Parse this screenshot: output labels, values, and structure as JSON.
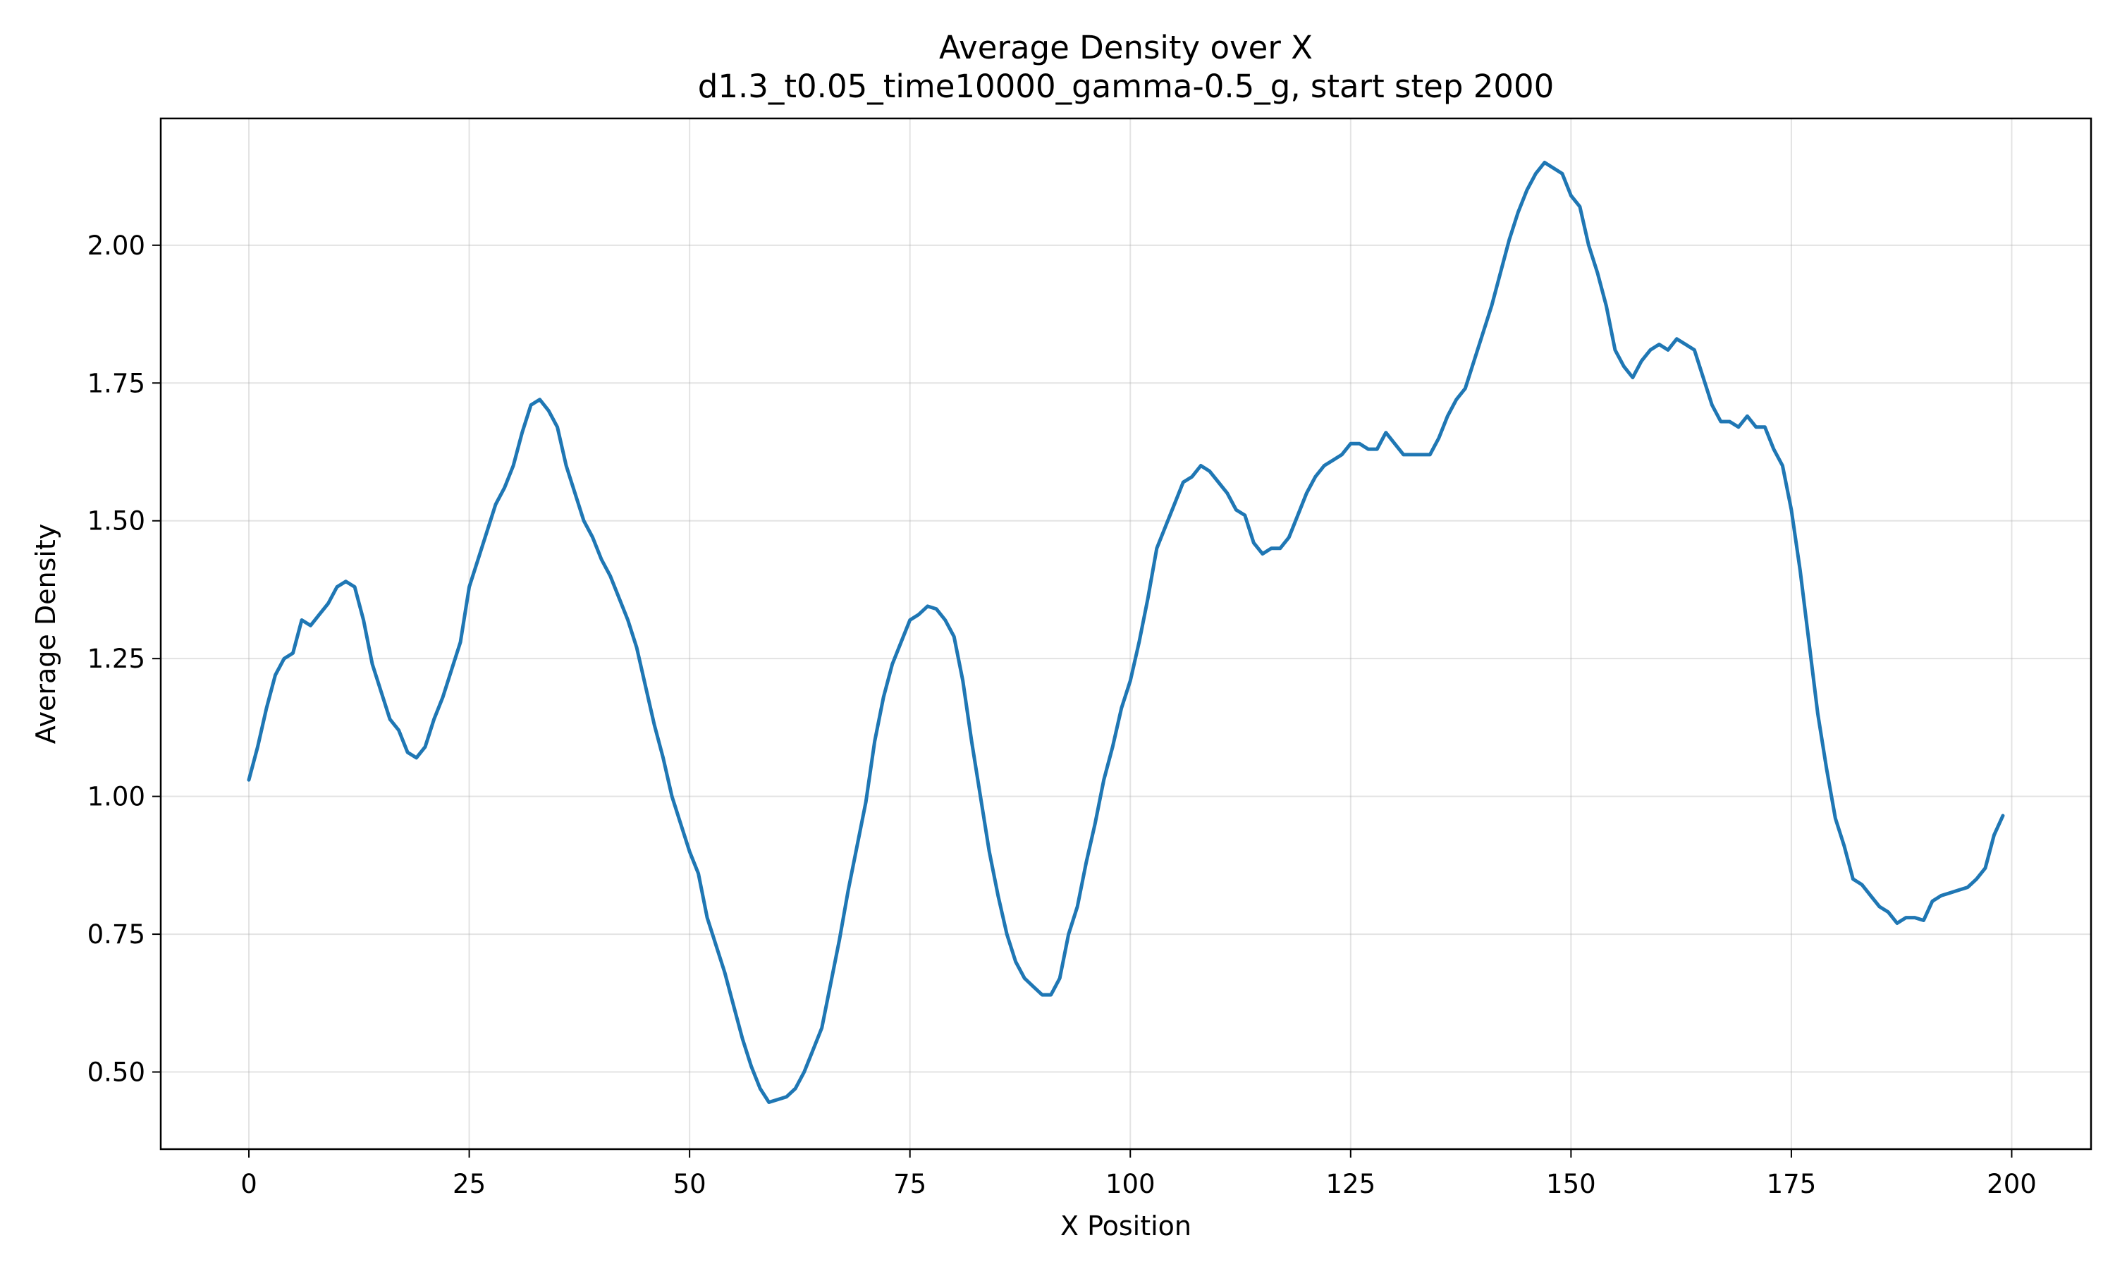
{
  "chart_data": {
    "type": "line",
    "title": "Average Density over X",
    "subtitle": "d1.3_t0.05_time10000_gamma-0.5_g, start step 2000",
    "xlabel": "X Position",
    "ylabel": "Average Density",
    "xlim": [
      -10,
      209
    ],
    "ylim": [
      0.36,
      2.23
    ],
    "xticks": [
      0,
      25,
      50,
      75,
      100,
      125,
      150,
      175,
      200
    ],
    "xtick_labels": [
      "0",
      "25",
      "50",
      "75",
      "100",
      "125",
      "150",
      "175",
      "200"
    ],
    "yticks": [
      0.5,
      0.75,
      1.0,
      1.25,
      1.5,
      1.75,
      2.0
    ],
    "ytick_labels": [
      "0.50",
      "0.75",
      "1.00",
      "1.25",
      "1.50",
      "1.75",
      "2.00"
    ],
    "grid": true,
    "series": [
      {
        "color": "#1f77b4",
        "x": [
          0,
          1,
          2,
          3,
          4,
          5,
          6,
          7,
          8,
          9,
          10,
          11,
          12,
          13,
          14,
          15,
          16,
          17,
          18,
          19,
          20,
          21,
          22,
          23,
          24,
          25,
          26,
          27,
          28,
          29,
          30,
          31,
          32,
          33,
          34,
          35,
          36,
          37,
          38,
          39,
          40,
          41,
          42,
          43,
          44,
          45,
          46,
          47,
          48,
          49,
          50,
          51,
          52,
          53,
          54,
          55,
          56,
          57,
          58,
          59,
          60,
          61,
          62,
          63,
          64,
          65,
          66,
          67,
          68,
          69,
          70,
          71,
          72,
          73,
          74,
          75,
          76,
          77,
          78,
          79,
          80,
          81,
          82,
          83,
          84,
          85,
          86,
          87,
          88,
          89,
          90,
          91,
          92,
          93,
          94,
          95,
          96,
          97,
          98,
          99,
          100,
          101,
          102,
          103,
          104,
          105,
          106,
          107,
          108,
          109,
          110,
          111,
          112,
          113,
          114,
          115,
          116,
          117,
          118,
          119,
          120,
          121,
          122,
          123,
          124,
          125,
          126,
          127,
          128,
          129,
          130,
          131,
          132,
          133,
          134,
          135,
          136,
          137,
          138,
          139,
          140,
          141,
          142,
          143,
          144,
          145,
          146,
          147,
          148,
          149,
          150,
          151,
          152,
          153,
          154,
          155,
          156,
          157,
          158,
          159,
          160,
          161,
          162,
          163,
          164,
          165,
          166,
          167,
          168,
          169,
          170,
          171,
          172,
          173,
          174,
          175,
          176,
          177,
          178,
          179,
          180,
          181,
          182,
          183,
          184,
          185,
          186,
          187,
          188,
          189,
          190,
          191,
          192,
          193,
          194,
          195,
          196,
          197,
          198,
          199
        ],
        "y": [
          1.03,
          1.09,
          1.16,
          1.22,
          1.25,
          1.26,
          1.32,
          1.31,
          1.33,
          1.35,
          1.38,
          1.39,
          1.38,
          1.32,
          1.24,
          1.19,
          1.14,
          1.12,
          1.08,
          1.07,
          1.09,
          1.14,
          1.18,
          1.23,
          1.28,
          1.38,
          1.43,
          1.48,
          1.53,
          1.56,
          1.6,
          1.66,
          1.71,
          1.72,
          1.7,
          1.67,
          1.6,
          1.55,
          1.5,
          1.47,
          1.43,
          1.4,
          1.36,
          1.32,
          1.27,
          1.2,
          1.13,
          1.07,
          1.0,
          0.95,
          0.9,
          0.86,
          0.78,
          0.73,
          0.68,
          0.62,
          0.56,
          0.51,
          0.47,
          0.445,
          0.45,
          0.455,
          0.47,
          0.5,
          0.54,
          0.58,
          0.66,
          0.74,
          0.83,
          0.91,
          0.99,
          1.1,
          1.18,
          1.24,
          1.28,
          1.32,
          1.33,
          1.345,
          1.34,
          1.32,
          1.29,
          1.21,
          1.1,
          1.0,
          0.9,
          0.82,
          0.75,
          0.7,
          0.67,
          0.655,
          0.64,
          0.64,
          0.67,
          0.75,
          0.8,
          0.88,
          0.95,
          1.03,
          1.09,
          1.16,
          1.21,
          1.28,
          1.36,
          1.45,
          1.49,
          1.53,
          1.57,
          1.58,
          1.6,
          1.59,
          1.57,
          1.55,
          1.52,
          1.51,
          1.46,
          1.44,
          1.45,
          1.45,
          1.47,
          1.51,
          1.55,
          1.58,
          1.6,
          1.61,
          1.62,
          1.64,
          1.64,
          1.63,
          1.63,
          1.66,
          1.64,
          1.62,
          1.62,
          1.62,
          1.62,
          1.65,
          1.69,
          1.72,
          1.74,
          1.79,
          1.84,
          1.89,
          1.95,
          2.01,
          2.06,
          2.1,
          2.13,
          2.15,
          2.14,
          2.13,
          2.09,
          2.07,
          2.0,
          1.95,
          1.89,
          1.81,
          1.78,
          1.76,
          1.79,
          1.81,
          1.82,
          1.81,
          1.83,
          1.82,
          1.81,
          1.76,
          1.71,
          1.68,
          1.68,
          1.67,
          1.69,
          1.67,
          1.67,
          1.63,
          1.6,
          1.52,
          1.41,
          1.28,
          1.15,
          1.05,
          0.96,
          0.91,
          0.85,
          0.84,
          0.82,
          0.8,
          0.79,
          0.77,
          0.78,
          0.78,
          0.775,
          0.81,
          0.82,
          0.825,
          0.83,
          0.835,
          0.85,
          0.87,
          0.93,
          0.965
        ]
      }
    ]
  }
}
